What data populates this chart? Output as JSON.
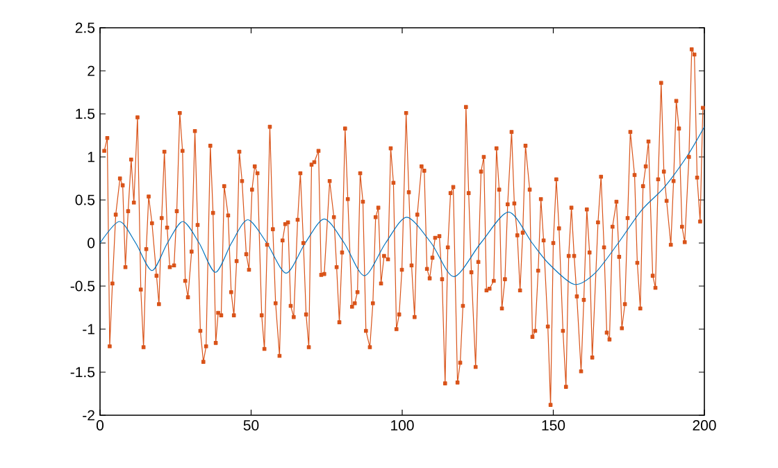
{
  "chart_data": {
    "type": "line",
    "xlim": [
      0,
      200
    ],
    "ylim": [
      -2,
      2.5
    ],
    "xticks": [
      0,
      50,
      100,
      150,
      200
    ],
    "yticks": [
      -2,
      -1.5,
      -1,
      -0.5,
      0,
      0.5,
      1,
      1.5,
      2,
      2.5
    ],
    "grid": false,
    "line_style": "solid",
    "series": [
      {
        "color": "#d95319",
        "marker": "square",
        "x": [
          1.4,
          2.4,
          3.2,
          4.1,
          5.2,
          6.6,
          7.5,
          8.4,
          9.3,
          10.3,
          11.2,
          12.4,
          13.5,
          14.4,
          15.3,
          16.1,
          17.2,
          18.7,
          19.5,
          20.4,
          21.3,
          22.2,
          23.1,
          24.5,
          25.4,
          26.4,
          27.3,
          28.2,
          29.1,
          30.3,
          31.4,
          32.3,
          33.2,
          34.2,
          35.1,
          36.5,
          37.4,
          38.3,
          39.1,
          40.1,
          41.1,
          42.4,
          43.4,
          44.3,
          45.2,
          46.1,
          47.0,
          48.4,
          49.3,
          50.3,
          51.2,
          52.1,
          53.5,
          54.4,
          55.3,
          56.2,
          57.2,
          58.1,
          59.4,
          60.4,
          61.3,
          62.2,
          63.1,
          64.1,
          65.4,
          66.3,
          67.3,
          68.2,
          69.1,
          70.0,
          70.9,
          72.3,
          73.2,
          74.2,
          76.0,
          77.4,
          78.3,
          79.2,
          80.1,
          81.1,
          82.0,
          83.4,
          84.3,
          85.2,
          86.1,
          87.0,
          88.0,
          89.3,
          90.3,
          91.2,
          92.1,
          93.0,
          94.0,
          95.3,
          96.2,
          97.1,
          98.1,
          99.0,
          99.9,
          101.3,
          102.2,
          103.1,
          104.1,
          105.0,
          106.4,
          107.3,
          108.2,
          109.1,
          110.0,
          110.9,
          112.3,
          113.2,
          114.2,
          115.1,
          116.0,
          116.9,
          118.3,
          119.2,
          120.1,
          121.1,
          122.0,
          122.9,
          124.3,
          125.2,
          126.1,
          127.0,
          127.9,
          128.9,
          130.3,
          131.2,
          132.1,
          133.0,
          134.0,
          134.9,
          136.2,
          137.1,
          138.1,
          139.0,
          139.9,
          140.8,
          142.2,
          143.1,
          144.0,
          145.0,
          145.9,
          146.8,
          148.2,
          149.1,
          150.0,
          151.0,
          151.9,
          153.2,
          154.2,
          155.1,
          156.0,
          156.9,
          157.8,
          159.2,
          160.1,
          161.1,
          162.0,
          162.9,
          164.8,
          165.8,
          166.8,
          167.7,
          168.6,
          169.6,
          170.9,
          171.8,
          172.7,
          173.7,
          174.6,
          175.5,
          176.9,
          177.8,
          178.8,
          179.7,
          180.6,
          181.5,
          182.9,
          183.8,
          184.7,
          185.7,
          186.6,
          187.5,
          188.9,
          189.8,
          190.7,
          191.6,
          192.6,
          193.5,
          194.9,
          195.8,
          196.7,
          197.6,
          198.6,
          199.5
        ],
        "values": [
          1.07,
          1.22,
          -1.2,
          -0.47,
          0.33,
          0.75,
          0.67,
          -0.28,
          0.37,
          0.97,
          0.47,
          1.46,
          -0.54,
          -1.21,
          -0.07,
          0.54,
          0.23,
          -0.38,
          -0.71,
          0.29,
          1.06,
          0.18,
          -0.28,
          -0.26,
          0.37,
          1.51,
          1.07,
          -0.44,
          -0.63,
          -0.1,
          1.3,
          0.21,
          -1.02,
          -1.38,
          -1.2,
          1.13,
          0.35,
          -1.16,
          -0.81,
          -0.84,
          0.66,
          0.32,
          -0.57,
          -0.84,
          -0.21,
          1.06,
          0.72,
          -0.13,
          -0.31,
          0.62,
          0.89,
          0.81,
          -0.84,
          -1.23,
          -0.02,
          1.35,
          0.16,
          -0.7,
          -1.31,
          0.03,
          0.22,
          0.24,
          -0.73,
          -0.86,
          0.27,
          0.81,
          0.0,
          -0.83,
          -1.21,
          0.91,
          0.94,
          1.07,
          -0.37,
          -0.36,
          0.72,
          0.3,
          -0.28,
          -0.92,
          -0.11,
          1.33,
          0.51,
          -0.74,
          -0.7,
          -0.57,
          0.81,
          0.48,
          -1.02,
          -1.21,
          -0.7,
          0.3,
          0.41,
          -0.47,
          -0.15,
          -0.19,
          1.1,
          0.7,
          -1.0,
          -0.83,
          -0.31,
          1.51,
          0.59,
          -0.26,
          -0.86,
          0.33,
          0.89,
          0.84,
          -0.3,
          -0.41,
          -0.17,
          0.06,
          0.08,
          -0.42,
          -1.63,
          -0.05,
          0.58,
          0.65,
          -1.62,
          -1.39,
          -0.73,
          1.58,
          0.58,
          -0.34,
          -1.44,
          -0.22,
          0.83,
          1.0,
          -0.55,
          -0.53,
          -0.44,
          1.1,
          0.62,
          -0.76,
          -0.42,
          0.45,
          1.29,
          0.46,
          0.09,
          -0.55,
          0.12,
          1.13,
          0.62,
          -1.09,
          -1.02,
          -0.32,
          0.51,
          0.03,
          -0.97,
          -1.88,
          0.0,
          0.74,
          0.17,
          -1.02,
          -1.67,
          -0.15,
          0.41,
          -0.15,
          -0.62,
          -1.49,
          -0.66,
          0.39,
          -0.11,
          -1.33,
          0.24,
          0.77,
          -0.05,
          -1.04,
          -1.12,
          0.19,
          0.48,
          -0.16,
          -0.99,
          -0.71,
          0.29,
          1.29,
          0.79,
          -0.23,
          -0.76,
          0.66,
          0.89,
          1.18,
          -0.38,
          -0.52,
          0.74,
          1.86,
          0.83,
          0.49,
          -0.02,
          0.72,
          1.65,
          1.33,
          0.19,
          0.01,
          1.0,
          2.25,
          2.19,
          0.76,
          0.25,
          1.57
        ]
      },
      {
        "color": "#0072bd",
        "marker": "none",
        "x": [
          0,
          6.4,
          11.8,
          17.2,
          22.3,
          27.4,
          32.8,
          38.2,
          43.5,
          48.9,
          55.2,
          61.6,
          67.9,
          74.2,
          80.8,
          87.5,
          94.5,
          101.5,
          109.6,
          117.1,
          126,
          135.2,
          143,
          148.5,
          156.9,
          163.8,
          171.5,
          179.2,
          186.8,
          194.5,
          200
        ],
        "values": [
          0,
          0.25,
          0,
          -0.32,
          0,
          0.25,
          0,
          -0.34,
          0,
          0.27,
          0,
          -0.35,
          0,
          0.28,
          0,
          -0.38,
          0,
          0.3,
          0,
          -0.39,
          0,
          0.36,
          0,
          -0.24,
          -0.48,
          -0.35,
          0,
          0.38,
          0.65,
          1.02,
          1.35
        ]
      }
    ]
  }
}
